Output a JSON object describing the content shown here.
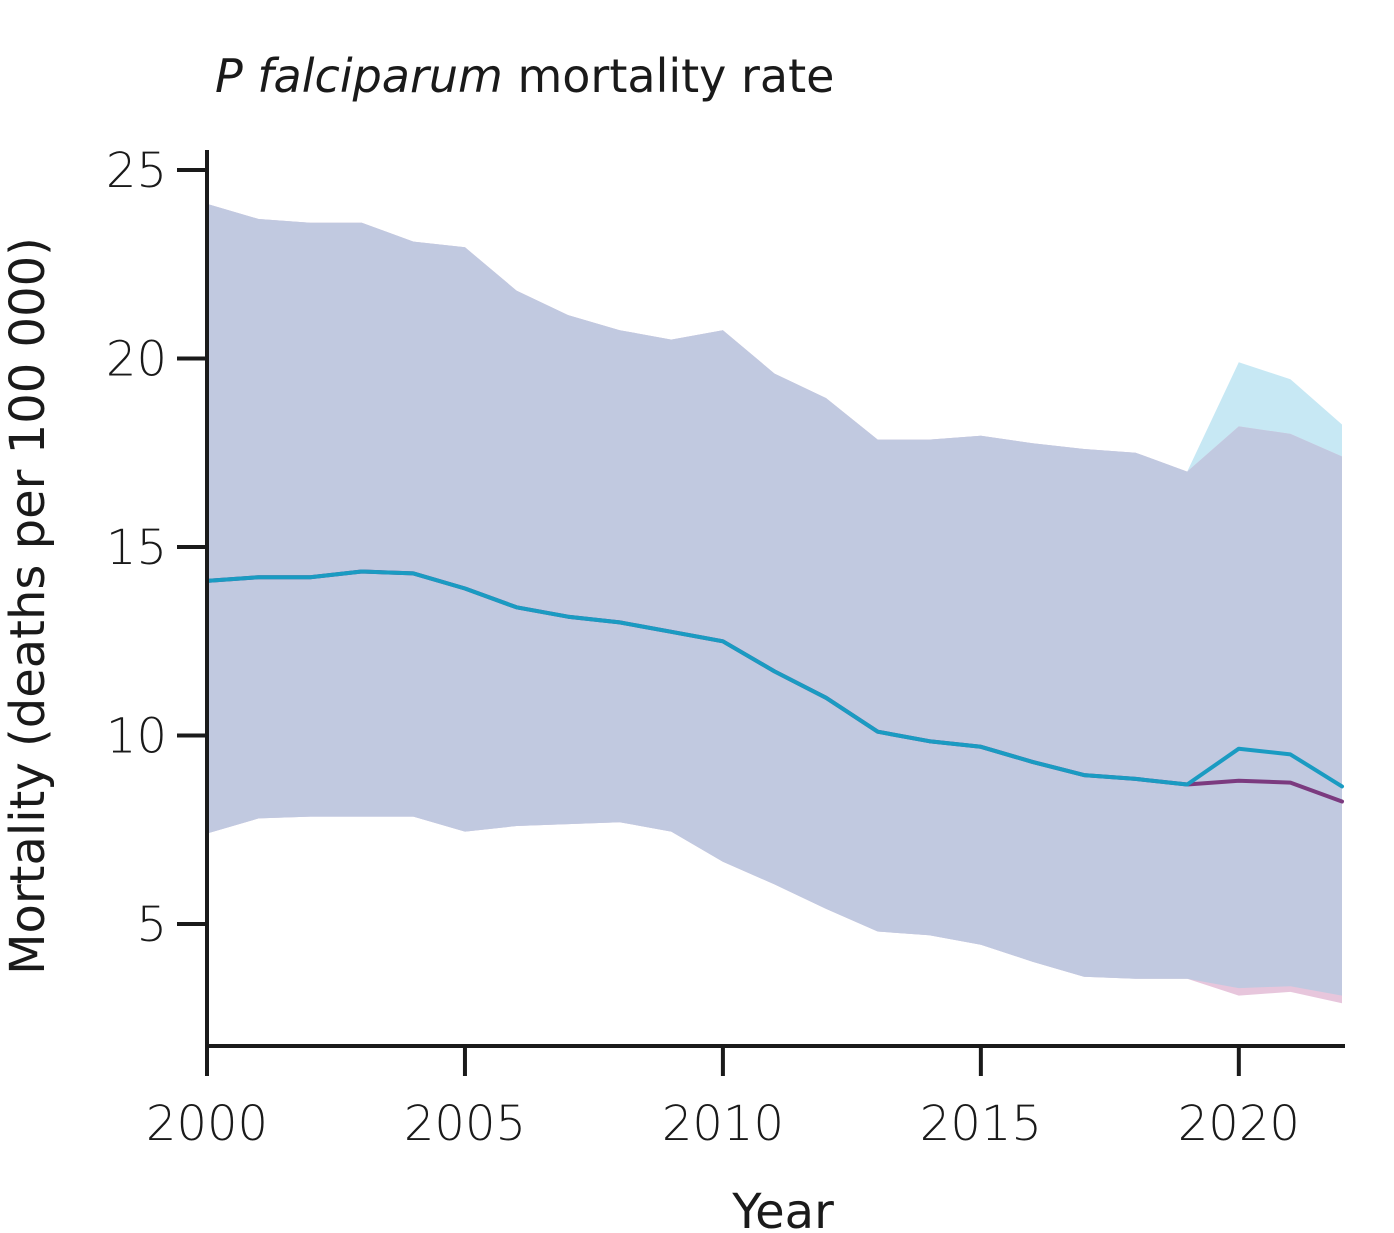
{
  "chart_data": {
    "type": "area",
    "title": "mortality rate",
    "title_species": "P falciparum",
    "xlabel": "Year",
    "ylabel": "Mortality (deaths per 100 000)",
    "xlim": [
      2000,
      2022
    ],
    "ylim": [
      3,
      25
    ],
    "x_ticks": [
      2000,
      2005,
      2010,
      2015,
      2020
    ],
    "y_ticks": [
      5,
      10,
      15,
      20,
      25
    ],
    "grid": false,
    "legend": "none",
    "series": [
      {
        "color": "#1a9bc2",
        "band_color": "#c7e8f4",
        "x": [
          2000,
          2001,
          2002,
          2003,
          2004,
          2005,
          2006,
          2007,
          2008,
          2009,
          2010,
          2011,
          2012,
          2013,
          2014,
          2015,
          2016,
          2017,
          2018,
          2019,
          2020,
          2021,
          2022
        ],
        "values": [
          14.1,
          14.2,
          14.2,
          14.35,
          14.3,
          13.9,
          13.4,
          13.15,
          13.0,
          12.75,
          12.5,
          11.7,
          11.0,
          10.1,
          9.85,
          9.7,
          9.3,
          8.95,
          8.85,
          8.7,
          9.65,
          9.5,
          8.65
        ],
        "lower": [
          7.4,
          7.8,
          7.85,
          7.85,
          7.85,
          7.45,
          7.6,
          7.65,
          7.7,
          7.45,
          6.65,
          6.05,
          5.4,
          4.8,
          4.7,
          4.45,
          4.0,
          3.6,
          3.55,
          3.55,
          3.3,
          3.35,
          3.1
        ],
        "upper": [
          24.1,
          23.7,
          23.6,
          23.6,
          23.1,
          22.95,
          21.8,
          21.15,
          20.75,
          20.5,
          20.75,
          19.6,
          18.95,
          17.85,
          17.85,
          17.95,
          17.75,
          17.6,
          17.5,
          17.0,
          19.9,
          19.45,
          18.25
        ]
      },
      {
        "color": "#7b3a7f",
        "band_color": "#e7c6dc",
        "x": [
          2000,
          2001,
          2002,
          2003,
          2004,
          2005,
          2006,
          2007,
          2008,
          2009,
          2010,
          2011,
          2012,
          2013,
          2014,
          2015,
          2016,
          2017,
          2018,
          2019,
          2020,
          2021,
          2022
        ],
        "values": [
          14.1,
          14.2,
          14.2,
          14.35,
          14.3,
          13.9,
          13.4,
          13.15,
          13.0,
          12.75,
          12.5,
          11.7,
          11.0,
          10.1,
          9.85,
          9.7,
          9.3,
          8.95,
          8.85,
          8.7,
          8.8,
          8.75,
          8.25
        ],
        "lower": [
          7.4,
          7.8,
          7.85,
          7.85,
          7.85,
          7.45,
          7.6,
          7.65,
          7.7,
          7.45,
          6.65,
          6.05,
          5.4,
          4.8,
          4.7,
          4.45,
          4.0,
          3.6,
          3.55,
          3.55,
          3.1,
          3.2,
          2.9
        ],
        "upper": [
          24.1,
          23.7,
          23.6,
          23.6,
          23.1,
          22.95,
          21.8,
          21.15,
          20.75,
          20.5,
          20.75,
          19.6,
          18.95,
          17.85,
          17.85,
          17.95,
          17.75,
          17.6,
          17.5,
          17.0,
          18.2,
          18.0,
          17.4
        ]
      }
    ],
    "overlap_color": "#c1c9e0"
  }
}
